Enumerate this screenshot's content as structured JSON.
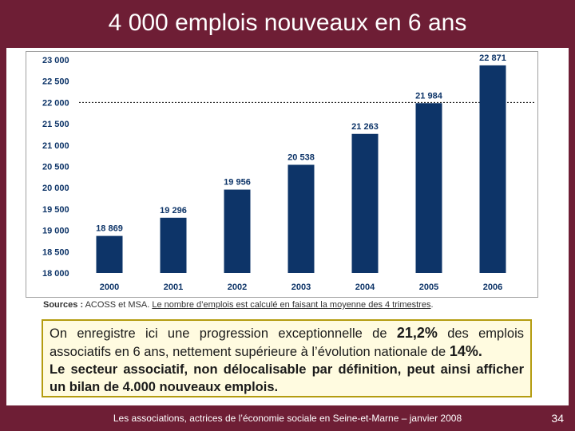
{
  "slide": {
    "title": "4 000 emplois nouveaux en 6 ans"
  },
  "sources": {
    "label": "Sources :",
    "text": " ACOSS et MSA. ",
    "note": "Le nombre d’emplois est calculé en faisant la moyenne des 4 trimestres"
  },
  "note": {
    "line1_a": "On enregistre ici une progression exceptionnelle de ",
    "line1_pct": "21,2%",
    "line1_b": " des emplois associatifs en 6 ans, nettement supérieure à l’évolution nationale de ",
    "line1_nat": "14%.",
    "line2": "Le secteur associatif, non délocalisable par définition, peut ainsi afficher un bilan de 4.000 nouveaux emplois."
  },
  "footer": {
    "text": "Les associations, actrices de l’économie sociale en Seine-et-Marne – janvier 2008",
    "page": "34"
  },
  "colors": {
    "bar": "#0d3468",
    "frame": "#6e1e35",
    "note_border": "#b49c10",
    "note_bg": "#fffbe0"
  },
  "chart_data": {
    "type": "bar",
    "title": "",
    "xlabel": "",
    "ylabel": "",
    "categories": [
      "2000",
      "2001",
      "2002",
      "2003",
      "2004",
      "2005",
      "2006"
    ],
    "values": [
      18869,
      19296,
      19956,
      20538,
      21263,
      21984,
      22871
    ],
    "value_labels": [
      "18 869",
      "19 296",
      "19 956",
      "20 538",
      "21 263",
      "21 984",
      "22 871"
    ],
    "ylim": [
      18000,
      23000
    ],
    "yticks": [
      18000,
      18500,
      19000,
      19500,
      20000,
      20500,
      21000,
      21500,
      22000,
      22500,
      23000
    ],
    "ytick_labels": [
      "18 000",
      "18 500",
      "19 000",
      "19 500",
      "20 000",
      "20 500",
      "21 000",
      "21 500",
      "22 000",
      "22 500",
      "23 000"
    ],
    "reference_line": 22000,
    "legend": "none"
  }
}
